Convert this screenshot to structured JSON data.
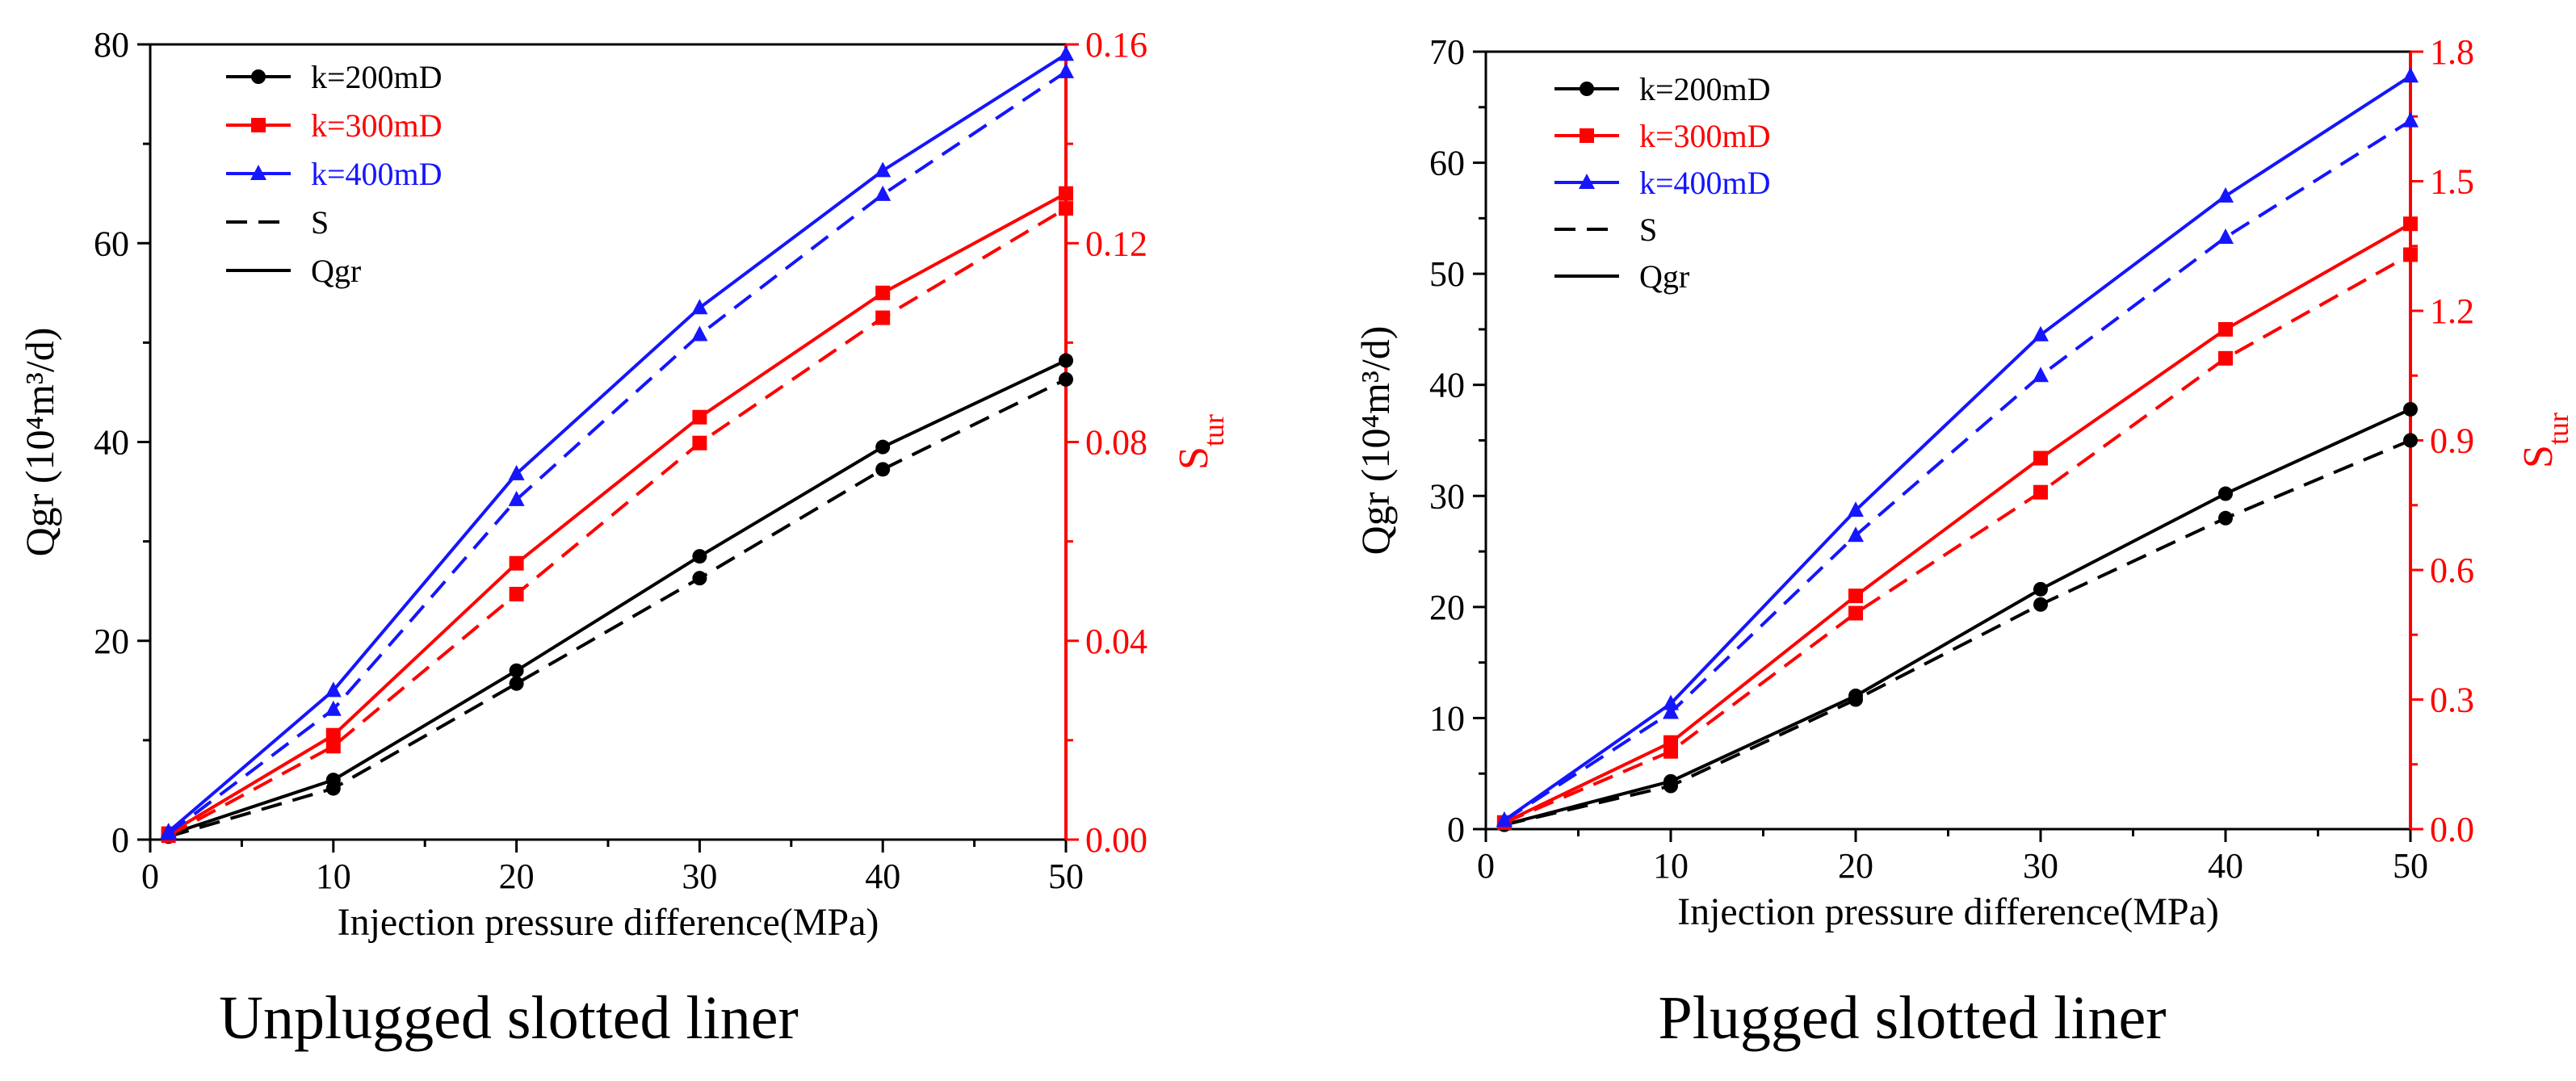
{
  "colors": {
    "black": "#000000",
    "red": "#ff0000",
    "blue": "#1515ff"
  },
  "chart_data": [
    {
      "type": "line",
      "caption": "Unplugged slotted liner",
      "xlabel": "Injection pressure difference(MPa)",
      "ylabel_left": "Qgr (10⁴m³/d)",
      "ylabel_right_main": "S",
      "ylabel_right_sub": "tur",
      "xlim": [
        0,
        50
      ],
      "xticks": [
        "0",
        "10",
        "20",
        "30",
        "40",
        "50"
      ],
      "ylim_left": [
        0,
        80
      ],
      "yticks_left": [
        "0",
        "20",
        "40",
        "60",
        "80"
      ],
      "ylim_right": [
        0,
        0.16
      ],
      "yticks_right": [
        "0.00",
        "0.04",
        "0.08",
        "0.12",
        "0.16"
      ],
      "legend": [
        {
          "label": "k=200mD",
          "color": "#000000",
          "marker": "circle",
          "style": "solid"
        },
        {
          "label": "k=300mD",
          "color": "#ff0000",
          "marker": "square",
          "style": "solid"
        },
        {
          "label": "k=400mD",
          "color": "#1515ff",
          "marker": "triangle",
          "style": "solid"
        },
        {
          "label": "S",
          "color": "#000000",
          "marker": "none",
          "style": "dashed"
        },
        {
          "label": "Qgr",
          "color": "#000000",
          "marker": "none",
          "style": "solid"
        }
      ],
      "x": [
        1,
        10,
        20,
        30,
        40,
        50
      ],
      "series": [
        {
          "name": "k=200mD Qgr",
          "axis": "left",
          "color": "#000000",
          "marker": "circle",
          "style": "solid",
          "values": [
            0.5,
            6,
            17,
            28.5,
            39.5,
            48.2
          ]
        },
        {
          "name": "k=200mD S",
          "axis": "right",
          "color": "#000000",
          "marker": "circle",
          "style": "dashed",
          "values": [
            0.0006,
            0.0103,
            0.0314,
            0.0526,
            0.0745,
            0.0926
          ]
        },
        {
          "name": "k=300mD Qgr",
          "axis": "left",
          "color": "#ff0000",
          "marker": "square",
          "style": "solid",
          "values": [
            0.6,
            10.5,
            27.8,
            42.5,
            55,
            65
          ]
        },
        {
          "name": "k=300mD S",
          "axis": "right",
          "color": "#ff0000",
          "marker": "square",
          "style": "dashed",
          "values": [
            0.0008,
            0.0188,
            0.0494,
            0.0798,
            0.105,
            0.127
          ]
        },
        {
          "name": "k=400mD Qgr",
          "axis": "left",
          "color": "#1515ff",
          "marker": "triangle",
          "style": "solid",
          "values": [
            0.8,
            15,
            36.8,
            53.5,
            67.3,
            79
          ]
        },
        {
          "name": "k=400mD S",
          "axis": "right",
          "color": "#1515ff",
          "marker": "triangle",
          "style": "dashed",
          "values": [
            0.0012,
            0.0262,
            0.0684,
            0.1016,
            0.1298,
            0.1545
          ]
        }
      ]
    },
    {
      "type": "line",
      "caption": "Plugged slotted liner",
      "xlabel": "Injection pressure difference(MPa)",
      "ylabel_left": "Qgr (10⁴m³/d)",
      "ylabel_right_main": "S",
      "ylabel_right_sub": "tur",
      "xlim": [
        0,
        50
      ],
      "xticks": [
        "0",
        "10",
        "20",
        "30",
        "40",
        "50"
      ],
      "ylim_left": [
        0,
        70
      ],
      "yticks_left": [
        "0",
        "10",
        "20",
        "30",
        "40",
        "50",
        "60",
        "70"
      ],
      "ylim_right": [
        0,
        1.8
      ],
      "yticks_right": [
        "0.0",
        "0.3",
        "0.6",
        "0.9",
        "1.2",
        "1.5",
        "1.8"
      ],
      "legend": [
        {
          "label": "k=200mD",
          "color": "#000000",
          "marker": "circle",
          "style": "solid"
        },
        {
          "label": "k=300mD",
          "color": "#ff0000",
          "marker": "square",
          "style": "solid"
        },
        {
          "label": "k=400mD",
          "color": "#1515ff",
          "marker": "triangle",
          "style": "solid"
        },
        {
          "label": "S",
          "color": "#000000",
          "marker": "none",
          "style": "dashed"
        },
        {
          "label": "Qgr",
          "color": "#000000",
          "marker": "none",
          "style": "solid"
        }
      ],
      "x": [
        1,
        10,
        20,
        30,
        40,
        50
      ],
      "series": [
        {
          "name": "k=200mD Qgr",
          "axis": "left",
          "color": "#000000",
          "marker": "circle",
          "style": "solid",
          "values": [
            0.4,
            4.3,
            12,
            21.6,
            30.2,
            37.8
          ]
        },
        {
          "name": "k=200mD S",
          "axis": "right",
          "color": "#000000",
          "marker": "circle",
          "style": "dashed",
          "values": [
            0.01,
            0.1,
            0.3,
            0.52,
            0.72,
            0.9
          ]
        },
        {
          "name": "k=300mD Qgr",
          "axis": "left",
          "color": "#ff0000",
          "marker": "square",
          "style": "solid",
          "values": [
            0.6,
            7.8,
            21,
            33.4,
            45,
            54.5
          ]
        },
        {
          "name": "k=300mD S",
          "axis": "right",
          "color": "#ff0000",
          "marker": "square",
          "style": "dashed",
          "values": [
            0.015,
            0.18,
            0.5,
            0.78,
            1.09,
            1.33
          ]
        },
        {
          "name": "k=400mD Qgr",
          "axis": "left",
          "color": "#1515ff",
          "marker": "triangle",
          "style": "solid",
          "values": [
            0.8,
            11.3,
            28.7,
            44.5,
            57,
            67.8
          ]
        },
        {
          "name": "k=400mD S",
          "axis": "right",
          "color": "#1515ff",
          "marker": "triangle",
          "style": "dashed",
          "values": [
            0.02,
            0.27,
            0.68,
            1.05,
            1.37,
            1.64
          ]
        }
      ]
    }
  ]
}
